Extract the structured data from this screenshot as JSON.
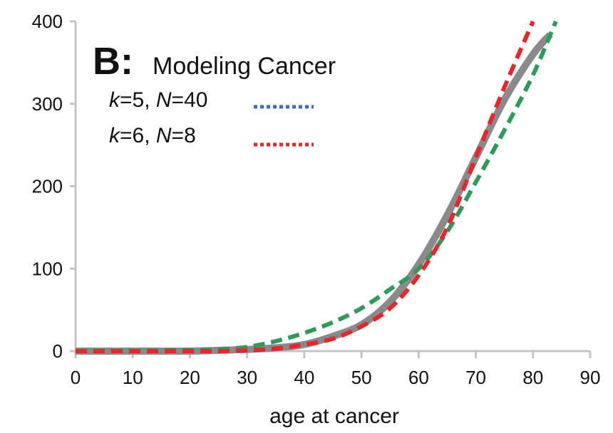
{
  "chart_data": {
    "type": "line",
    "panel_letter": "B:",
    "title": "Modeling Cancer",
    "xlabel": "age at cancer",
    "ylabel": "",
    "xlim": [
      0,
      90
    ],
    "ylim": [
      0,
      400
    ],
    "x_ticks": [
      "0",
      "10",
      "20",
      "30",
      "40",
      "50",
      "60",
      "70",
      "80",
      "90"
    ],
    "y_ticks": [
      "0",
      "100",
      "200",
      "300",
      "400"
    ],
    "grid": false,
    "legend_position": "top-left",
    "legend": [
      {
        "k_label": "k",
        "k_value": "=5, ",
        "n_label": "N",
        "n_value": "=40",
        "color": "#3b6fc4"
      },
      {
        "k_label": "k",
        "k_value": "=6, ",
        "n_label": "N",
        "n_value": "=8",
        "color": "#e8262c"
      }
    ],
    "series": [
      {
        "style": "solid",
        "color": "#8a8a8a",
        "x": [
          0,
          10,
          20,
          25,
          30,
          35,
          40,
          45,
          50,
          55,
          60,
          65,
          70,
          75,
          80,
          83
        ],
        "y": [
          0,
          0,
          0,
          1,
          2,
          4,
          8,
          18,
          32,
          60,
          105,
          165,
          235,
          305,
          360,
          384
        ]
      },
      {
        "style": "dashed",
        "color": "#2e9a5c",
        "x": [
          0,
          10,
          20,
          25,
          30,
          35,
          40,
          45,
          50,
          55,
          60,
          65,
          70,
          75,
          80,
          84
        ],
        "y": [
          0,
          0,
          1,
          2,
          5,
          12,
          22,
          35,
          52,
          75,
          100,
          145,
          205,
          268,
          335,
          400
        ]
      },
      {
        "style": "dashed",
        "color": "#e8262c",
        "x": [
          0,
          10,
          20,
          25,
          30,
          35,
          40,
          45,
          50,
          55,
          60,
          65,
          70,
          75,
          80
        ],
        "y": [
          0,
          0,
          0,
          0,
          1,
          3,
          8,
          15,
          30,
          52,
          92,
          150,
          235,
          320,
          400
        ]
      }
    ]
  }
}
